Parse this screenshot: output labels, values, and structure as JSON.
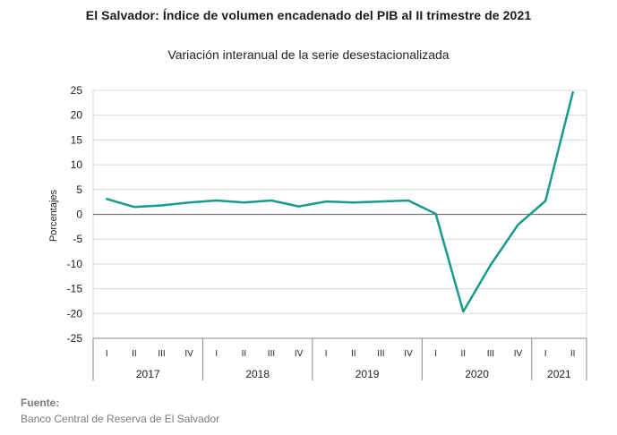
{
  "chart_data": {
    "type": "line",
    "title": "El Salvador: Índice de volumen encadenado del PIB al II trimestre de 2021",
    "subtitle": "Variación interanual de la serie desestacionalizada",
    "ylabel": "Porcentajes",
    "xlabel": "",
    "ylim": [
      -25,
      25
    ],
    "yticks": [
      25,
      20,
      15,
      10,
      5,
      0,
      -5,
      -10,
      -15,
      -20,
      -25
    ],
    "grid": true,
    "legend": "none",
    "years": [
      {
        "label": "2017",
        "quarters": [
          "I",
          "II",
          "III",
          "IV"
        ]
      },
      {
        "label": "2018",
        "quarters": [
          "I",
          "II",
          "III",
          "IV"
        ]
      },
      {
        "label": "2019",
        "quarters": [
          "I",
          "II",
          "III",
          "IV"
        ]
      },
      {
        "label": "2020",
        "quarters": [
          "I",
          "II",
          "III",
          "IV"
        ]
      },
      {
        "label": "2021",
        "quarters": [
          "I",
          "II"
        ]
      }
    ],
    "series": [
      {
        "values": [
          3.1,
          1.5,
          1.8,
          2.4,
          2.8,
          2.4,
          2.8,
          1.6,
          2.6,
          2.4,
          2.6,
          2.8,
          0.1,
          -19.6,
          -10.2,
          -2.1,
          2.7,
          24.6
        ],
        "color": "#1a9a8c"
      }
    ]
  },
  "footer": {
    "source_label": "Fuente:",
    "source_text": "Banco Central de Reserva de El Salvador"
  }
}
